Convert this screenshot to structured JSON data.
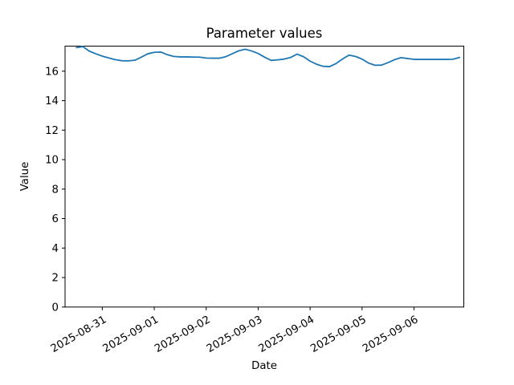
{
  "figure": {
    "title": "Parameter values",
    "xlabel": "Date",
    "ylabel": "Value"
  },
  "chart_data": {
    "type": "line",
    "title": "Parameter values",
    "xlabel": "Date",
    "ylabel": "Value",
    "line_color": "#1f77b4",
    "background_color": "#ffffff",
    "grid": false,
    "legend": "none",
    "ylim": [
      0,
      17.7
    ],
    "xlim": [
      "2025-08-30T06:48",
      "2025-09-06T23:00"
    ],
    "y_ticks": [
      0,
      2,
      4,
      6,
      8,
      10,
      12,
      14,
      16
    ],
    "x_ticks": [
      {
        "value": "2025-08-31T00:00",
        "label": "2025-08-31"
      },
      {
        "value": "2025-09-01T00:00",
        "label": "2025-09-01"
      },
      {
        "value": "2025-09-02T00:00",
        "label": "2025-09-02"
      },
      {
        "value": "2025-09-03T00:00",
        "label": "2025-09-03"
      },
      {
        "value": "2025-09-04T00:00",
        "label": "2025-09-04"
      },
      {
        "value": "2025-09-05T00:00",
        "label": "2025-09-05"
      },
      {
        "value": "2025-09-06T00:00",
        "label": "2025-09-06"
      }
    ],
    "x_tick_rotation_deg": 30,
    "series": [
      {
        "name": "parameter-values",
        "x": [
          "2025-08-30T12:00",
          "2025-08-30T15:00",
          "2025-08-30T18:00",
          "2025-08-30T21:00",
          "2025-08-31T00:00",
          "2025-08-31T03:00",
          "2025-08-31T06:00",
          "2025-08-31T09:00",
          "2025-08-31T12:00",
          "2025-08-31T15:00",
          "2025-08-31T18:00",
          "2025-08-31T21:00",
          "2025-09-01T00:00",
          "2025-09-01T03:00",
          "2025-09-01T06:00",
          "2025-09-01T09:00",
          "2025-09-01T12:00",
          "2025-09-01T15:00",
          "2025-09-01T18:00",
          "2025-09-01T21:00",
          "2025-09-02T00:00",
          "2025-09-02T03:00",
          "2025-09-02T06:00",
          "2025-09-02T09:00",
          "2025-09-02T12:00",
          "2025-09-02T15:00",
          "2025-09-02T18:00",
          "2025-09-02T21:00",
          "2025-09-03T00:00",
          "2025-09-03T03:00",
          "2025-09-03T06:00",
          "2025-09-03T09:00",
          "2025-09-03T12:00",
          "2025-09-03T15:00",
          "2025-09-03T18:00",
          "2025-09-03T21:00",
          "2025-09-04T00:00",
          "2025-09-04T03:00",
          "2025-09-04T06:00",
          "2025-09-04T09:00",
          "2025-09-04T12:00",
          "2025-09-04T15:00",
          "2025-09-04T18:00",
          "2025-09-04T21:00",
          "2025-09-05T00:00",
          "2025-09-05T03:00",
          "2025-09-05T06:00",
          "2025-09-05T09:00",
          "2025-09-05T12:00",
          "2025-09-05T15:00",
          "2025-09-05T18:00",
          "2025-09-05T21:00",
          "2025-09-06T00:00",
          "2025-09-06T03:00",
          "2025-09-06T06:00",
          "2025-09-06T09:00",
          "2025-09-06T12:00",
          "2025-09-06T15:00",
          "2025-09-06T18:00",
          "2025-09-06T21:00"
        ],
        "values": [
          17.6,
          17.67,
          17.36,
          17.18,
          17.02,
          16.9,
          16.78,
          16.71,
          16.7,
          16.74,
          16.95,
          17.18,
          17.28,
          17.3,
          17.12,
          17.0,
          16.97,
          16.97,
          16.96,
          16.95,
          16.89,
          16.88,
          16.88,
          16.98,
          17.18,
          17.38,
          17.49,
          17.37,
          17.2,
          16.95,
          16.73,
          16.77,
          16.82,
          16.93,
          17.16,
          16.98,
          16.68,
          16.47,
          16.33,
          16.31,
          16.52,
          16.83,
          17.09,
          17.0,
          16.82,
          16.55,
          16.4,
          16.41,
          16.58,
          16.78,
          16.92,
          16.86,
          16.8,
          16.8,
          16.8,
          16.8,
          16.8,
          16.8,
          16.81,
          16.93
        ]
      }
    ]
  }
}
